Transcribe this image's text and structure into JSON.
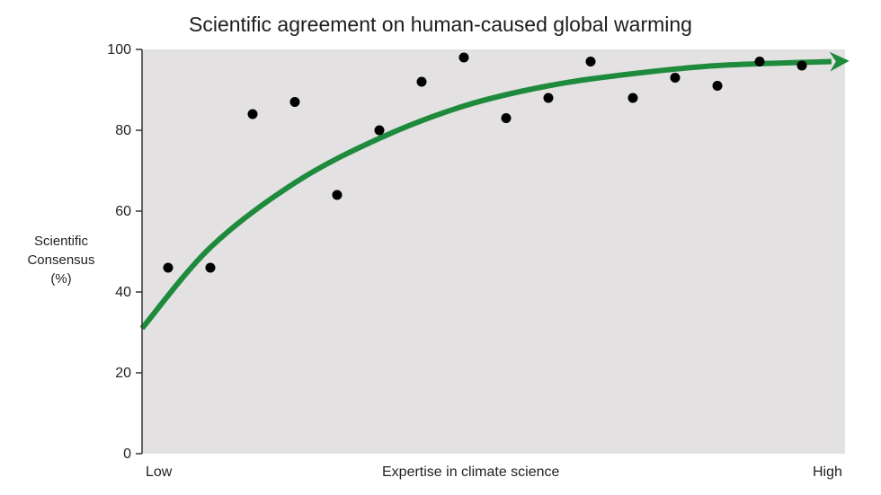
{
  "chart_data": {
    "type": "scatter",
    "title": "Scientific agreement on human-caused global warming",
    "ylabel_lines": [
      "Scientific",
      "Consensus",
      "(%)"
    ],
    "xlabel": "Expertise in climate science",
    "x_low_label": "Low",
    "x_high_label": "High",
    "ylim": [
      0,
      100
    ],
    "yticks": [
      "0",
      "20",
      "40",
      "60",
      "80",
      "100"
    ],
    "grid": false,
    "points": [
      {
        "x": 1,
        "y": 46
      },
      {
        "x": 2,
        "y": 46
      },
      {
        "x": 3,
        "y": 84
      },
      {
        "x": 4,
        "y": 87
      },
      {
        "x": 5,
        "y": 64
      },
      {
        "x": 6,
        "y": 80
      },
      {
        "x": 7,
        "y": 92
      },
      {
        "x": 8,
        "y": 98
      },
      {
        "x": 9,
        "y": 83
      },
      {
        "x": 10,
        "y": 88
      },
      {
        "x": 11,
        "y": 97
      },
      {
        "x": 12,
        "y": 88
      },
      {
        "x": 13,
        "y": 93
      },
      {
        "x": 14,
        "y": 91
      },
      {
        "x": 15,
        "y": 97
      },
      {
        "x": 16,
        "y": 96
      }
    ],
    "trend_curve": {
      "color": "#1e8a3c",
      "arrow": true,
      "points": [
        {
          "x": 0,
          "y": 31
        },
        {
          "x": 2,
          "y": 51
        },
        {
          "x": 4,
          "y": 67
        },
        {
          "x": 6,
          "y": 78
        },
        {
          "x": 8,
          "y": 86
        },
        {
          "x": 10,
          "y": 91
        },
        {
          "x": 12,
          "y": 94
        },
        {
          "x": 14,
          "y": 96
        },
        {
          "x": 16.7,
          "y": 97
        }
      ]
    },
    "colors": {
      "plot_background": "#e3e1e2",
      "point": "#000000",
      "axis": "#333333"
    }
  }
}
